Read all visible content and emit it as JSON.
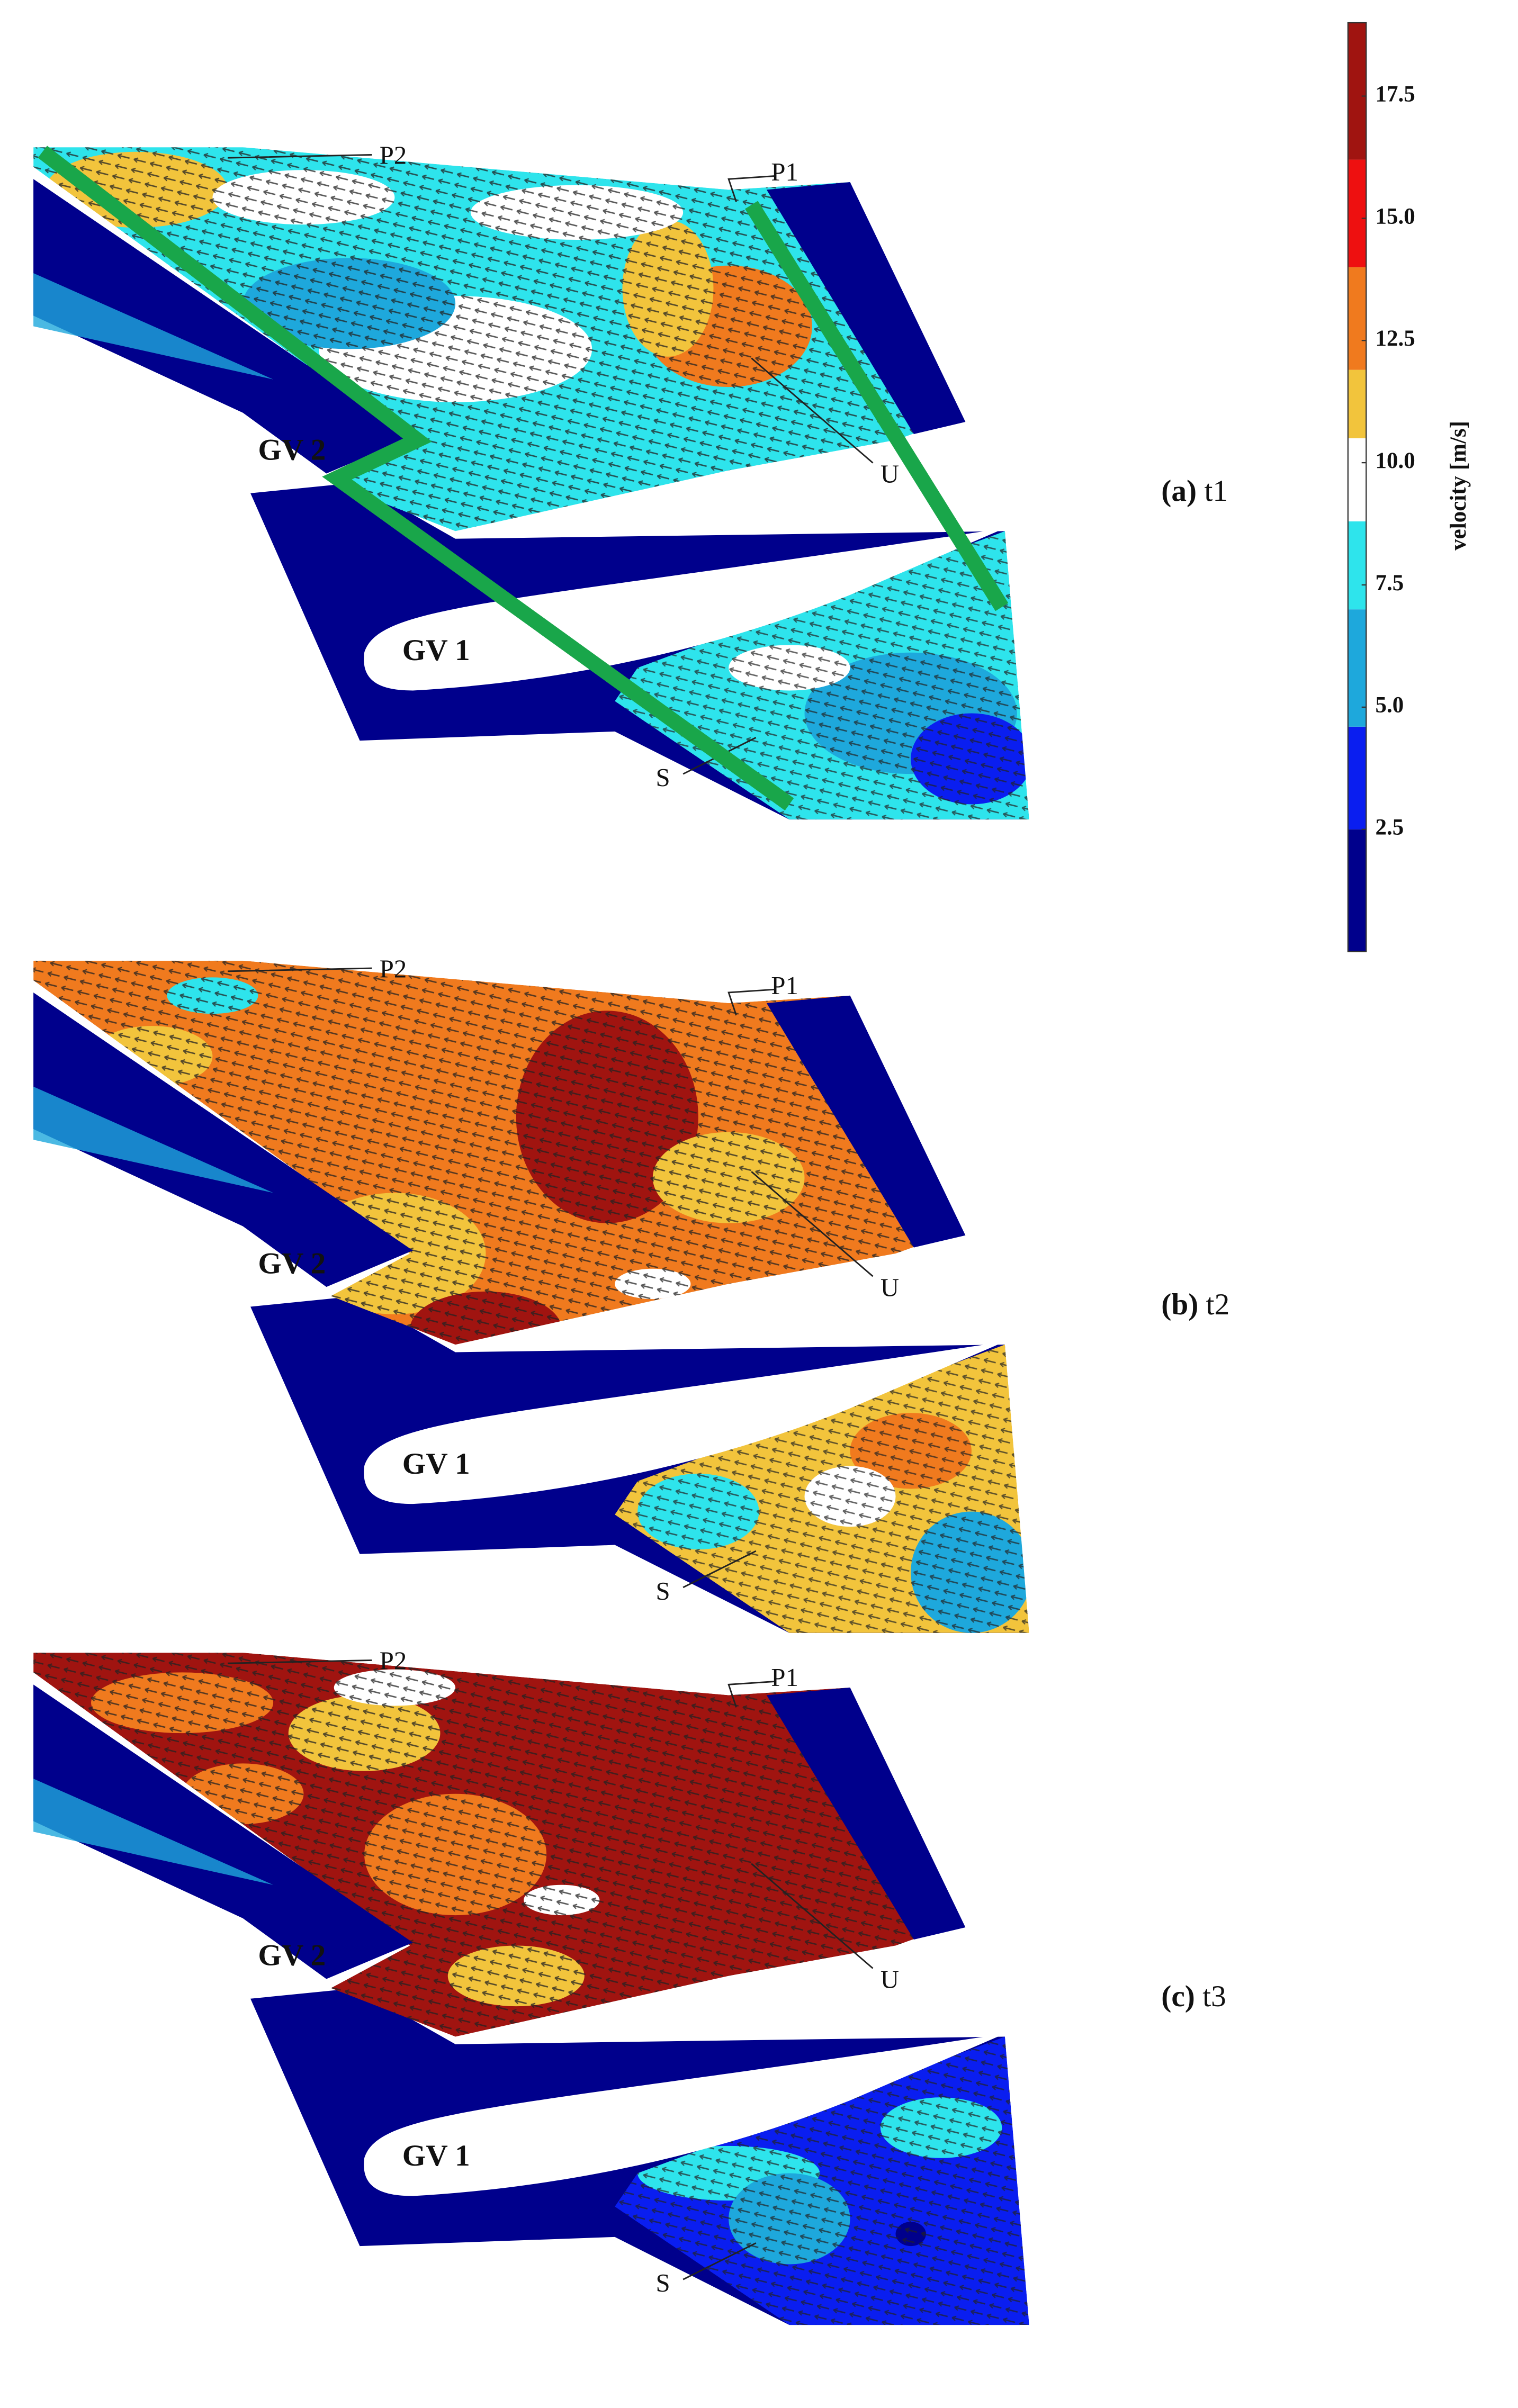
{
  "panels": [
    {
      "tag": "(a)",
      "time": "t1",
      "labels": {
        "p1": "P1",
        "p2": "P2",
        "u": "U",
        "s": "S",
        "gv1": "GV 1",
        "gv2": "GV 2"
      }
    },
    {
      "tag": "(b)",
      "time": "t2",
      "labels": {
        "p1": "P1",
        "p2": "P2",
        "u": "U",
        "s": "S",
        "gv1": "GV 1",
        "gv2": "GV 2"
      }
    },
    {
      "tag": "(c)",
      "time": "t3",
      "labels": {
        "p1": "P1",
        "p2": "P2",
        "u": "U",
        "s": "S",
        "gv1": "GV 1",
        "gv2": "GV 2"
      }
    }
  ],
  "colorbar": {
    "label": "velocity [m/s]",
    "lim": [
      0,
      19
    ],
    "ticks": [
      2.5,
      {
        "value": 5,
        "label": "5.0"
      },
      7.5,
      {
        "value": 10,
        "label": "10.0"
      },
      12.5,
      {
        "value": 15,
        "label": "15.0"
      },
      17.5
    ],
    "bands": [
      {
        "from": 0,
        "to": 2.5,
        "color": "#00008c"
      },
      {
        "from": 2.5,
        "to": 4.6,
        "color": "#0a1ef0"
      },
      {
        "from": 4.6,
        "to": 7,
        "color": "#1ea8dc"
      },
      {
        "from": 7,
        "to": 8.8,
        "color": "#2ee4ec"
      },
      {
        "from": 8.8,
        "to": 10.5,
        "color": "#ffffff"
      },
      {
        "from": 10.5,
        "to": 11.9,
        "color": "#f2c43c"
      },
      {
        "from": 11.9,
        "to": 14,
        "color": "#f07a1e"
      },
      {
        "from": 14,
        "to": 16.2,
        "color": "#ee1010"
      },
      {
        "from": 16.2,
        "to": 19,
        "color": "#a01410"
      }
    ]
  }
}
